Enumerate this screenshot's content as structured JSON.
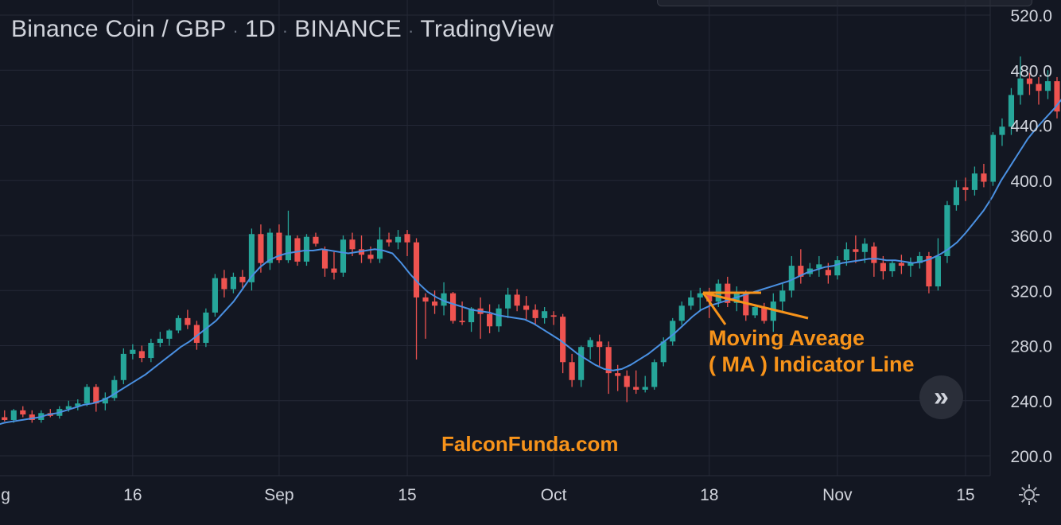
{
  "header": {
    "symbol": "Binance Coin / GBP",
    "interval": "1D",
    "exchange": "BINANCE",
    "source": "TradingView",
    "separator": "·"
  },
  "annotation": {
    "line1": "Moving Aveage",
    "line2": "( MA ) Indicator Line",
    "color": "#f7931a"
  },
  "watermark": {
    "text": "FalconFunda.com",
    "color": "#f7931a"
  },
  "controls": {
    "scroll_glyph": "»",
    "settings_icon": "gear-icon"
  },
  "colors": {
    "background": "#131722",
    "grid": "#242836",
    "axis_text": "#d1d4dc",
    "up": "#26a69a",
    "down": "#ef5350",
    "ma_line": "#4a90e2"
  },
  "chart_data": {
    "type": "candlestick",
    "title": "Binance Coin / GBP · 1D · BINANCE · TradingView",
    "ylim": [
      190,
      525
    ],
    "y_ticks": [
      "520.0",
      "480.0",
      "440.0",
      "400.0",
      "360.0",
      "320.0",
      "280.0",
      "240.0",
      "200.0"
    ],
    "y_tick_values": [
      520,
      480,
      440,
      400,
      360,
      320,
      280,
      240,
      200
    ],
    "x_ticks": [
      {
        "label": "Aug",
        "index": 0
      },
      {
        "label": "16",
        "index": 15
      },
      {
        "label": "Sep",
        "index": 31
      },
      {
        "label": "15",
        "index": 45
      },
      {
        "label": "Oct",
        "index": 61
      },
      {
        "label": "18",
        "index": 78
      },
      {
        "label": "Nov",
        "index": 92
      },
      {
        "label": "15",
        "index": 106
      }
    ],
    "index_range": [
      0.5,
      108.7
    ],
    "grid": true,
    "series": [
      {
        "name": "Candles",
        "ohlc": [
          [
            228,
            233,
            225,
            226
          ],
          [
            226,
            234,
            224,
            233
          ],
          [
            233,
            236,
            228,
            230
          ],
          [
            230,
            233,
            224,
            226
          ],
          [
            226,
            233,
            224,
            231
          ],
          [
            231,
            234,
            228,
            229
          ],
          [
            229,
            236,
            227,
            234
          ],
          [
            234,
            240,
            232,
            236
          ],
          [
            236,
            241,
            233,
            238
          ],
          [
            238,
            252,
            236,
            250
          ],
          [
            250,
            252,
            232,
            238
          ],
          [
            238,
            246,
            233,
            242
          ],
          [
            242,
            258,
            240,
            255
          ],
          [
            255,
            278,
            252,
            274
          ],
          [
            274,
            281,
            270,
            277
          ],
          [
            276,
            280,
            268,
            271
          ],
          [
            271,
            285,
            268,
            282
          ],
          [
            282,
            290,
            279,
            285
          ],
          [
            285,
            292,
            280,
            291
          ],
          [
            291,
            302,
            289,
            300
          ],
          [
            300,
            306,
            292,
            295
          ],
          [
            295,
            298,
            277,
            282
          ],
          [
            282,
            307,
            279,
            304
          ],
          [
            304,
            332,
            301,
            329
          ],
          [
            329,
            335,
            315,
            321
          ],
          [
            321,
            333,
            318,
            330
          ],
          [
            330,
            335,
            322,
            326
          ],
          [
            326,
            365,
            320,
            361
          ],
          [
            361,
            368,
            333,
            340
          ],
          [
            340,
            365,
            335,
            362
          ],
          [
            362,
            368,
            340,
            342
          ],
          [
            342,
            378,
            340,
            360
          ],
          [
            358,
            360,
            338,
            341
          ],
          [
            341,
            361,
            338,
            359
          ],
          [
            359,
            362,
            352,
            354
          ],
          [
            350,
            352,
            330,
            336
          ],
          [
            336,
            348,
            328,
            333
          ],
          [
            333,
            360,
            330,
            357
          ],
          [
            357,
            362,
            345,
            350
          ],
          [
            350,
            360,
            340,
            346
          ],
          [
            346,
            352,
            340,
            343
          ],
          [
            343,
            366,
            340,
            357
          ],
          [
            357,
            362,
            352,
            355
          ],
          [
            355,
            364,
            350,
            359
          ],
          [
            361,
            364,
            345,
            355
          ],
          [
            355,
            358,
            270,
            315
          ],
          [
            315,
            318,
            285,
            312
          ],
          [
            312,
            320,
            303,
            309
          ],
          [
            309,
            326,
            302,
            318
          ],
          [
            318,
            319,
            296,
            298
          ],
          [
            298,
            312,
            295,
            297
          ],
          [
            297,
            308,
            290,
            307
          ],
          [
            307,
            315,
            285,
            303
          ],
          [
            303,
            310,
            289,
            294
          ],
          [
            294,
            310,
            290,
            307
          ],
          [
            307,
            322,
            300,
            317
          ],
          [
            317,
            321,
            305,
            309
          ],
          [
            309,
            316,
            299,
            306
          ],
          [
            306,
            310,
            295,
            300
          ],
          [
            300,
            308,
            296,
            305
          ],
          [
            302,
            305,
            295,
            301
          ],
          [
            301,
            303,
            260,
            268
          ],
          [
            268,
            274,
            250,
            255
          ],
          [
            255,
            280,
            250,
            279
          ],
          [
            279,
            286,
            270,
            284
          ],
          [
            283,
            288,
            265,
            279
          ],
          [
            279,
            283,
            245,
            260
          ],
          [
            260,
            266,
            247,
            258
          ],
          [
            258,
            262,
            239,
            250
          ],
          [
            250,
            262,
            245,
            248
          ],
          [
            248,
            258,
            246,
            250
          ],
          [
            250,
            270,
            248,
            268
          ],
          [
            268,
            286,
            265,
            283
          ],
          [
            283,
            300,
            280,
            298
          ],
          [
            298,
            312,
            295,
            309
          ],
          [
            309,
            320,
            306,
            315
          ],
          [
            315,
            322,
            305,
            318
          ],
          [
            318,
            322,
            300,
            312
          ],
          [
            312,
            328,
            308,
            325
          ],
          [
            325,
            330,
            308,
            311
          ],
          [
            311,
            323,
            305,
            318
          ],
          [
            318,
            320,
            298,
            302
          ],
          [
            302,
            310,
            300,
            308
          ],
          [
            308,
            311,
            296,
            298
          ],
          [
            298,
            318,
            290,
            312
          ],
          [
            312,
            325,
            305,
            320
          ],
          [
            320,
            345,
            315,
            338
          ],
          [
            338,
            350,
            325,
            330
          ],
          [
            332,
            340,
            330,
            336
          ],
          [
            336,
            345,
            330,
            339
          ],
          [
            335,
            340,
            325,
            331
          ],
          [
            331,
            345,
            328,
            342
          ],
          [
            342,
            355,
            338,
            350
          ],
          [
            350,
            360,
            340,
            348
          ],
          [
            348,
            358,
            340,
            354
          ],
          [
            352,
            355,
            330,
            340
          ],
          [
            340,
            345,
            328,
            334
          ],
          [
            334,
            342,
            330,
            340
          ],
          [
            340,
            346,
            332,
            338
          ],
          [
            338,
            344,
            330,
            340
          ],
          [
            340,
            348,
            336,
            345
          ],
          [
            345,
            348,
            318,
            323
          ],
          [
            323,
            358,
            320,
            345
          ],
          [
            345,
            385,
            340,
            382
          ],
          [
            382,
            400,
            378,
            395
          ],
          [
            395,
            402,
            385,
            393
          ],
          [
            393,
            410,
            389,
            405
          ],
          [
            405,
            412,
            395,
            399
          ],
          [
            399,
            435,
            396,
            433
          ],
          [
            433,
            445,
            425,
            439
          ],
          [
            439,
            467,
            433,
            462
          ],
          [
            462,
            490,
            455,
            474
          ],
          [
            474,
            478,
            462,
            470
          ],
          [
            470,
            475,
            455,
            465
          ],
          [
            465,
            480,
            459,
            472
          ],
          [
            472,
            475,
            445,
            450
          ],
          [
            450,
            480,
            440,
            468
          ],
          [
            468,
            470,
            450,
            458
          ],
          [
            458,
            480,
            455,
            471
          ],
          [
            471,
            485,
            468,
            475
          ]
        ]
      },
      {
        "name": "MA",
        "values": [
          222,
          224,
          225,
          226,
          227,
          228,
          230,
          231,
          233,
          235,
          237,
          238,
          240,
          243,
          247,
          251,
          255,
          259,
          264,
          269,
          274,
          279,
          283,
          288,
          293,
          298,
          305,
          312,
          321,
          330,
          337,
          342,
          345,
          347,
          348,
          349,
          349,
          350,
          349,
          348,
          347,
          348,
          349,
          350,
          349,
          347,
          340,
          332,
          325,
          319,
          315,
          312,
          310,
          308,
          306,
          305,
          304,
          302,
          301,
          300,
          299,
          296,
          292,
          288,
          284,
          279,
          274,
          270,
          266,
          263,
          262,
          263,
          266,
          270,
          274,
          279,
          284,
          289,
          295,
          301,
          306,
          309,
          311,
          313,
          315,
          317,
          319,
          321,
          323,
          325,
          327,
          330,
          333,
          335,
          337,
          338,
          340,
          341,
          342,
          343,
          343,
          342,
          342,
          341,
          340,
          341,
          343,
          346,
          350,
          355,
          362,
          370,
          378,
          388,
          400,
          410,
          420,
          430,
          438,
          445,
          452,
          460,
          466,
          470,
          472,
          470
        ]
      }
    ]
  }
}
